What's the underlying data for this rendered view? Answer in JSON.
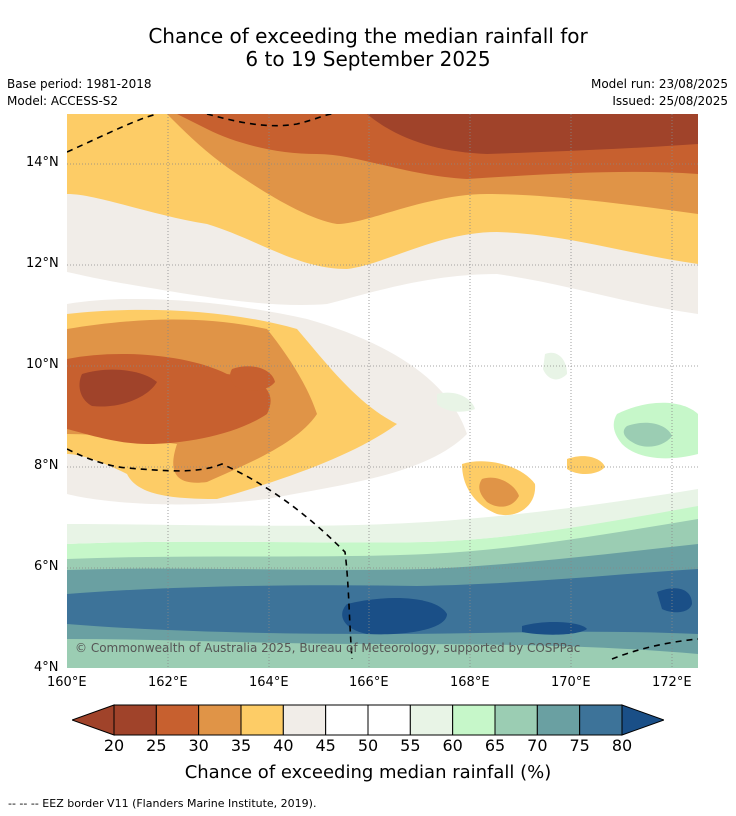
{
  "title": {
    "line1": "Chance of exceeding the median rainfall for",
    "line2": "6 to 19 September 2025"
  },
  "meta": {
    "base_period": "Base period: 1981-2018",
    "model": "Model: ACCESS-S2",
    "model_run": "Model run: 23/08/2025",
    "issued": "Issued: 25/08/2025"
  },
  "axes": {
    "lat_ticks": [
      "14°N",
      "12°N",
      "10°N",
      "8°N",
      "6°N",
      "4°N"
    ],
    "lon_ticks": [
      "160°E",
      "162°E",
      "164°E",
      "166°E",
      "168°E",
      "170°E",
      "172°E"
    ]
  },
  "copyright": "© Commonwealth of Australia 2025, Bureau of Meteorology, supported by COSPPac",
  "colorbar": {
    "title": "Chance of exceeding median rainfall (%)",
    "ticks": [
      "20",
      "25",
      "30",
      "35",
      "40",
      "45",
      "50",
      "55",
      "60",
      "65",
      "70",
      "75",
      "80"
    ],
    "colors": [
      "#a0432a",
      "#c7602f",
      "#e09447",
      "#fdcc66",
      "#f1ede8",
      "#ffffff",
      "#ffffff",
      "#e8f4e6",
      "#c6f7c9",
      "#9bcdb3",
      "#6aa0a2",
      "#3d7399",
      "#1a4f87"
    ]
  },
  "footnote": "--  --  -- EEZ border V11 (Flanders Marine Institute, 2019)."
}
